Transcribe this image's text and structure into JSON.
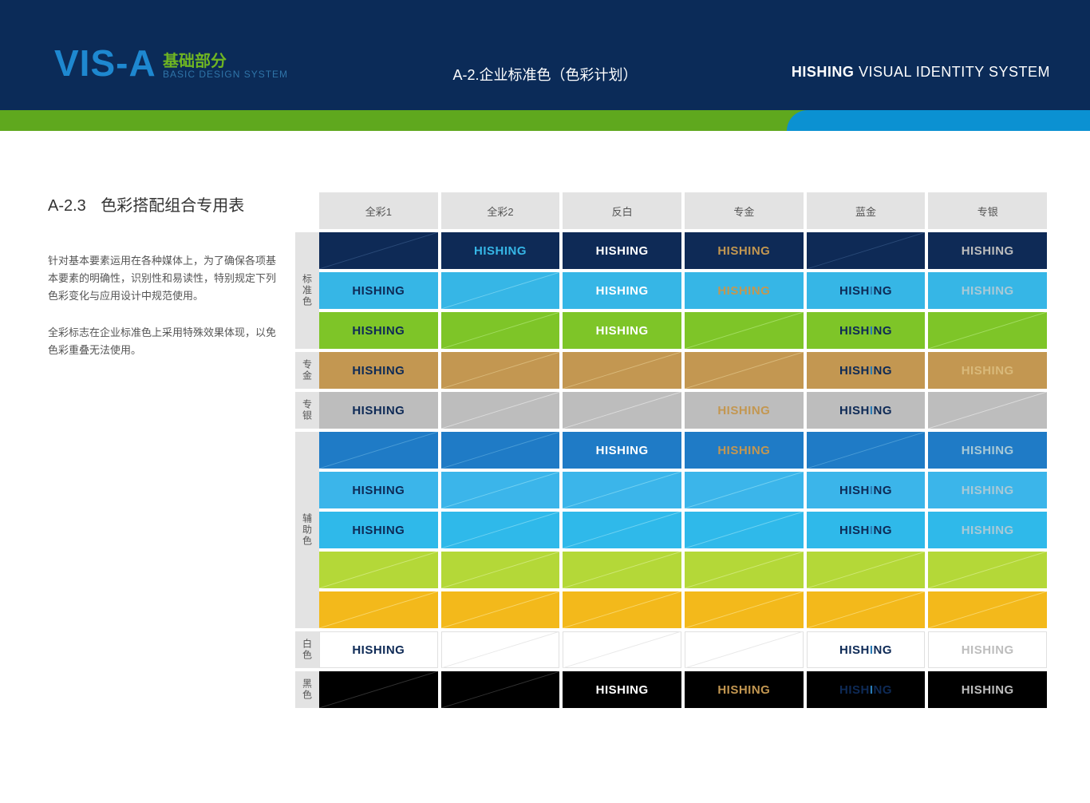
{
  "header": {
    "visA": "VIS-A",
    "subCn": "基础部分",
    "subEn": "BASIC DESIGN SYSTEM",
    "centerTitle": "A-2.企业标准色（色彩计划）",
    "brandBold": "HISHING",
    "brandRest": " VISUAL IDENTITY SYSTEM"
  },
  "colors": {
    "headerBg": "#0b2b58",
    "stripeGreen": "#5fa81e",
    "stripeBlue": "#0b91d2"
  },
  "side": {
    "num": "A-2.3",
    "title": "色彩搭配组合专用表",
    "p1": "针对基本要素运用在各种媒体上，为了确保各项基本要素的明确性，识别性和易读性，特别规定下列色彩变化与应用设计中规范使用。",
    "p2": "全彩标志在企业标准色上采用特殊效果体现，以免色彩重叠无法使用。"
  },
  "brandWord": "HISHING",
  "columns": [
    "全彩1",
    "全彩2",
    "反白",
    "专金",
    "蓝金",
    "专银"
  ],
  "palette": {
    "navy": "#0e2a56",
    "cyan": "#36b6e6",
    "green": "#7ec528",
    "gold": "#c39751",
    "silver": "#bdbdbd",
    "blue2": "#1f7bc6",
    "sky": "#3bb5ea",
    "cyan2": "#2fb9ea",
    "lime": "#b4d838",
    "yellow": "#f3b91b",
    "white": "#ffffff",
    "black": "#000000",
    "textNavy": "#0e2a56",
    "textCyan": "#36b6e6",
    "textWhite": "#ffffff",
    "textGold": "#c39751",
    "textSilver": "#bdbdbd",
    "textSilverOnCyan": "#a9c9d6",
    "goldOnGold": "#d9b97a",
    "silverOnSilver": "#dcdcdc",
    "blueGoldA": "#0e2a56",
    "blueGoldB": "#2a7db8"
  },
  "groups": [
    {
      "label": "标准色",
      "rows": [
        {
          "bg": "navy",
          "cells": [
            {
              "slash": true,
              "slashColor": "#2a4a78"
            },
            {
              "text": true,
              "color": "textCyan"
            },
            {
              "text": true,
              "color": "textWhite"
            },
            {
              "text": true,
              "color": "textGold"
            },
            {
              "slash": true,
              "slashColor": "#2a4a78"
            },
            {
              "text": true,
              "color": "textSilver"
            }
          ]
        },
        {
          "bg": "cyan",
          "cells": [
            {
              "text": true,
              "color": "textNavy"
            },
            {
              "slash": true,
              "slashColor": "#6fd0f0"
            },
            {
              "text": true,
              "color": "textWhite"
            },
            {
              "text": true,
              "color": "textGold"
            },
            {
              "text": true,
              "blueGold": true
            },
            {
              "text": true,
              "color": "textSilverOnCyan"
            }
          ]
        },
        {
          "bg": "green",
          "cells": [
            {
              "text": true,
              "color": "textNavy"
            },
            {
              "slash": true,
              "slashColor": "#a2dd60"
            },
            {
              "text": true,
              "color": "textWhite"
            },
            {
              "slash": true,
              "slashColor": "#a2dd60"
            },
            {
              "text": true,
              "blueGold": true
            },
            {
              "slash": true,
              "slashColor": "#a2dd60"
            }
          ]
        }
      ]
    },
    {
      "label": "专金",
      "rows": [
        {
          "bg": "gold",
          "cells": [
            {
              "text": true,
              "color": "textNavy"
            },
            {
              "slash": true,
              "slashColor": "#d9b97a"
            },
            {
              "slash": true,
              "slashColor": "#d9b97a"
            },
            {
              "slash": true,
              "slashColor": "#d9b97a"
            },
            {
              "text": true,
              "blueGold": true
            },
            {
              "text": true,
              "color": "goldOnGold"
            }
          ]
        }
      ]
    },
    {
      "label": "专银",
      "rows": [
        {
          "bg": "silver",
          "cells": [
            {
              "text": true,
              "color": "textNavy"
            },
            {
              "slash": true,
              "slashColor": "#dcdcdc"
            },
            {
              "slash": true,
              "slashColor": "#dcdcdc"
            },
            {
              "text": true,
              "color": "textGold"
            },
            {
              "text": true,
              "blueGold": true
            },
            {
              "slash": true,
              "slashColor": "#dcdcdc"
            }
          ]
        }
      ]
    },
    {
      "label": "辅助色",
      "rows": [
        {
          "bg": "blue2",
          "cells": [
            {
              "slash": true,
              "slashColor": "#4a9cd6"
            },
            {
              "slash": true,
              "slashColor": "#4a9cd6"
            },
            {
              "text": true,
              "color": "textWhite"
            },
            {
              "text": true,
              "color": "textGold"
            },
            {
              "slash": true,
              "slashColor": "#4a9cd6"
            },
            {
              "text": true,
              "color": "textSilverOnCyan"
            }
          ]
        },
        {
          "bg": "sky",
          "cells": [
            {
              "text": true,
              "color": "textNavy"
            },
            {
              "slash": true,
              "slashColor": "#73d1f2"
            },
            {
              "slash": true,
              "slashColor": "#73d1f2"
            },
            {
              "slash": true,
              "slashColor": "#73d1f2"
            },
            {
              "text": true,
              "blueGold": true
            },
            {
              "text": true,
              "color": "textSilverOnCyan"
            }
          ]
        },
        {
          "bg": "cyan2",
          "cells": [
            {
              "text": true,
              "color": "textNavy"
            },
            {
              "slash": true,
              "slashColor": "#6fd3f2"
            },
            {
              "slash": true,
              "slashColor": "#6fd3f2"
            },
            {
              "slash": true,
              "slashColor": "#6fd3f2"
            },
            {
              "text": true,
              "blueGold": true
            },
            {
              "text": true,
              "color": "textSilverOnCyan"
            }
          ]
        },
        {
          "bg": "lime",
          "cells": [
            {
              "slash": true,
              "slashColor": "#cfe876"
            },
            {
              "slash": true,
              "slashColor": "#cfe876"
            },
            {
              "slash": true,
              "slashColor": "#cfe876"
            },
            {
              "slash": true,
              "slashColor": "#cfe876"
            },
            {
              "slash": true,
              "slashColor": "#cfe876"
            },
            {
              "slash": true,
              "slashColor": "#cfe876"
            }
          ]
        },
        {
          "bg": "yellow",
          "cells": [
            {
              "slash": true,
              "slashColor": "#f9d66a"
            },
            {
              "slash": true,
              "slashColor": "#f9d66a"
            },
            {
              "slash": true,
              "slashColor": "#f9d66a"
            },
            {
              "slash": true,
              "slashColor": "#f9d66a"
            },
            {
              "slash": true,
              "slashColor": "#f9d66a"
            },
            {
              "slash": true,
              "slashColor": "#f9d66a"
            }
          ]
        }
      ]
    },
    {
      "label": "白色",
      "rows": [
        {
          "bg": "white",
          "border": "#e0e0e0",
          "cells": [
            {
              "text": true,
              "color": "textNavy"
            },
            {
              "slash": true,
              "slashColor": "#e8e8e8"
            },
            {
              "slash": true,
              "slashColor": "#e8e8e8"
            },
            {
              "slash": true,
              "slashColor": "#e8e8e8"
            },
            {
              "text": true,
              "blueGold": true
            },
            {
              "text": true,
              "color": "textSilver"
            }
          ]
        }
      ]
    },
    {
      "label": "黑色",
      "rows": [
        {
          "bg": "black",
          "cells": [
            {
              "slash": true,
              "slashColor": "#333333"
            },
            {
              "slash": true,
              "slashColor": "#333333"
            },
            {
              "text": true,
              "color": "textWhite"
            },
            {
              "text": true,
              "color": "textGold"
            },
            {
              "text": true,
              "blueGold": true
            },
            {
              "text": true,
              "color": "textSilver"
            }
          ]
        }
      ]
    }
  ]
}
